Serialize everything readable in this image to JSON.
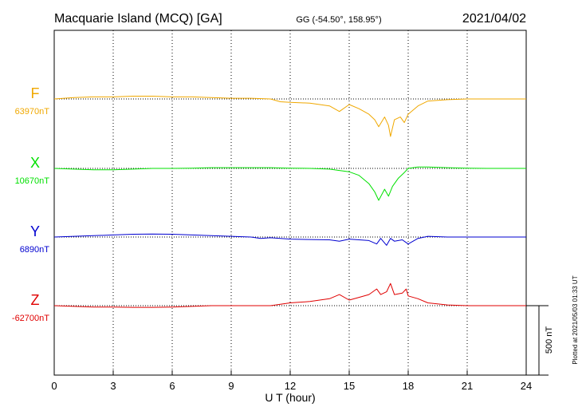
{
  "header": {
    "title": "Macquarie Island (MCQ)  [GA]",
    "coords": "GG (-54.50°, 158.95°)",
    "date": "2021/04/02"
  },
  "side_note": "Plotted at 2021/05/03 01:33 UT",
  "scale_bar": {
    "label": "500 nT",
    "value_nT": 500
  },
  "chart_data": {
    "type": "line",
    "xlabel": "U T (hour)",
    "xlim": [
      0,
      24
    ],
    "x_ticks": [
      0,
      3,
      6,
      9,
      12,
      15,
      18,
      21,
      24
    ],
    "x_tick_labels": [
      "0",
      "3",
      "6",
      "9",
      "12",
      "15",
      "18",
      "21",
      "24"
    ],
    "grid": "dotted vertical lines every 3 hours, dotted baseline per series",
    "units": "nT",
    "series": [
      {
        "name": "F",
        "baseline_label": "63970nT",
        "baseline": 63970,
        "color": "#f0a800",
        "x": [
          0,
          1,
          2,
          3,
          4,
          5,
          6,
          7,
          8,
          9,
          10,
          11,
          11.5,
          12,
          13,
          14,
          14.5,
          15,
          15.5,
          16,
          16.3,
          16.5,
          16.8,
          17,
          17.1,
          17.3,
          17.6,
          17.8,
          18,
          18.5,
          19,
          20,
          21,
          22,
          23,
          24
        ],
        "y": [
          63970,
          63980,
          63985,
          63985,
          63990,
          63990,
          63985,
          63985,
          63980,
          63975,
          63975,
          63970,
          63950,
          63945,
          63940,
          63920,
          63880,
          63930,
          63900,
          63860,
          63820,
          63770,
          63840,
          63780,
          63700,
          63820,
          63840,
          63800,
          63860,
          63920,
          63955,
          63965,
          63970,
          63970,
          63970,
          63970
        ]
      },
      {
        "name": "X",
        "baseline_label": "10670nT",
        "baseline": 10670,
        "color": "#00e000",
        "x": [
          0,
          1,
          2,
          3,
          4,
          5,
          6,
          7,
          8,
          9,
          10,
          11,
          12,
          13,
          14,
          14.5,
          15,
          15.5,
          16,
          16.3,
          16.5,
          16.8,
          17,
          17.2,
          17.5,
          17.8,
          18,
          18.5,
          19,
          20,
          21,
          22,
          23,
          24
        ],
        "y": [
          10670,
          10665,
          10660,
          10660,
          10665,
          10670,
          10670,
          10672,
          10675,
          10675,
          10675,
          10675,
          10672,
          10670,
          10665,
          10655,
          10645,
          10620,
          10560,
          10500,
          10440,
          10520,
          10470,
          10540,
          10600,
          10640,
          10670,
          10680,
          10680,
          10675,
          10672,
          10670,
          10670,
          10670
        ]
      },
      {
        "name": "Y",
        "baseline_label": "6890nT",
        "baseline": 6890,
        "color": "#0000d0",
        "x": [
          0,
          1,
          2,
          3,
          4,
          5,
          6,
          7,
          8,
          9,
          10,
          10.5,
          11,
          11.5,
          12,
          13,
          14,
          14.5,
          15,
          15.5,
          16,
          16.4,
          16.6,
          16.9,
          17.1,
          17.3,
          17.7,
          18,
          18.5,
          19,
          20,
          21,
          22,
          23,
          24
        ],
        "y": [
          6890,
          6895,
          6900,
          6905,
          6910,
          6912,
          6910,
          6905,
          6900,
          6895,
          6890,
          6880,
          6885,
          6880,
          6875,
          6872,
          6870,
          6860,
          6875,
          6870,
          6865,
          6840,
          6880,
          6830,
          6880,
          6860,
          6870,
          6840,
          6880,
          6895,
          6890,
          6890,
          6890,
          6890,
          6890
        ]
      },
      {
        "name": "Z",
        "baseline_label": "-62700nT",
        "baseline": -62700,
        "color": "#e00000",
        "x": [
          0,
          1,
          2,
          3,
          4,
          5,
          6,
          7,
          8,
          9,
          10,
          11,
          11.5,
          12,
          13,
          14,
          14.5,
          15,
          15.5,
          16,
          16.4,
          16.6,
          16.9,
          17.1,
          17.3,
          17.7,
          17.9,
          18,
          18.5,
          19,
          20,
          21,
          22,
          23,
          24
        ],
        "y": [
          -62700,
          -62705,
          -62710,
          -62710,
          -62712,
          -62712,
          -62710,
          -62705,
          -62700,
          -62700,
          -62700,
          -62700,
          -62690,
          -62680,
          -62670,
          -62650,
          -62620,
          -62660,
          -62640,
          -62620,
          -62580,
          -62620,
          -62600,
          -62540,
          -62620,
          -62610,
          -62580,
          -62630,
          -62650,
          -62680,
          -62695,
          -62700,
          -62700,
          -62700,
          -62700
        ]
      }
    ]
  }
}
